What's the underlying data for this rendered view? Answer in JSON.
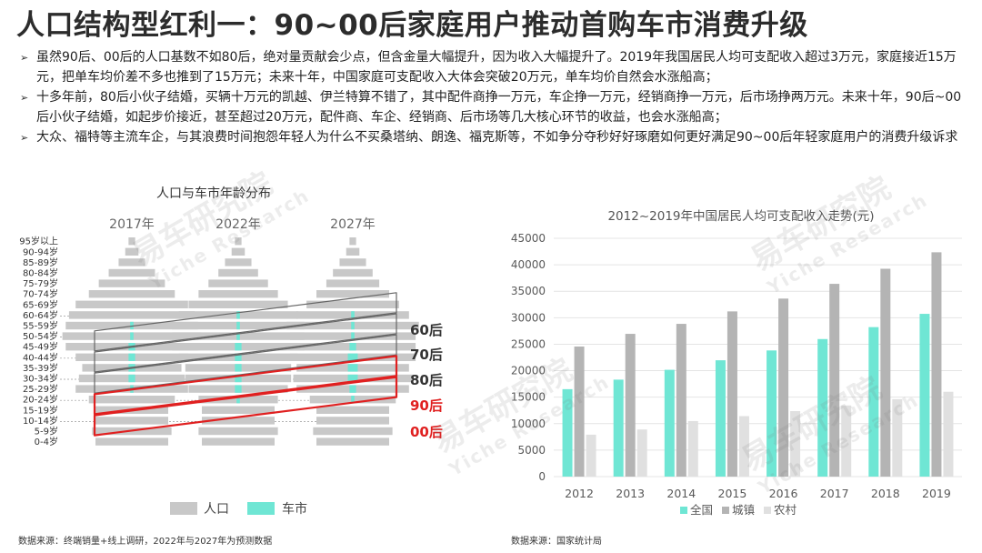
{
  "page": {
    "title": "人口结构型红利一：90~00后家庭用户推动首购车市消费升级",
    "bullets": [
      "虽然90后、00后的人口基数不如80后，绝对量贡献会少点，但含金量大幅提升，因为收入大幅提升了。2019年我国居民人均可支配收入超过3万元，家庭接近15万元，把单车均价差不多也推到了15万元；未来十年，中国家庭可支配收入大体会突破20万元，单车均价自然会水涨船高；",
      "十多年前，80后小伙子结婚，买辆十万元的凯越、伊兰特算不错了，其中配件商挣一万元，车企挣一万元，经销商挣一万元，后市场挣两万元。未来十年，90后~00后小伙子结婚，如起步价接近，甚至超过20万元，配件商、车企、经销商、后市场等几大核心环节的收益，也会水涨船高；",
      "大众、福特等主流车企，与其浪费时间抱怨年轻人为什么不买桑塔纳、朗逸、福克斯等，不如争分夺秒好好琢磨如何更好满足90~00后年轻家庭用户的消费升级诉求"
    ],
    "watermark": {
      "cn": "易车研究院",
      "en": "Yiche Research"
    },
    "source_left": "数据来源：终端销量+线上调研，2022年与2027年为预测数据",
    "source_right": "数据来源：国家统计局"
  },
  "chart_data": [
    {
      "type": "bar",
      "title": "人口与车市年龄分布",
      "columns": [
        "2017年",
        "2022年",
        "2027年"
      ],
      "age_groups": [
        "95岁以上",
        "90-94岁",
        "85-89岁",
        "80-84岁",
        "75-79岁",
        "70-74岁",
        "65-69岁",
        "60-64岁",
        "55-59岁",
        "50-54岁",
        "45-49岁",
        "40-44岁",
        "35-39岁",
        "30-34岁",
        "25-29岁",
        "20-24岁",
        "15-19岁",
        "10-14岁",
        "5-9岁",
        "0-4岁"
      ],
      "series": [
        {
          "name": "人口",
          "color": "#c8c8c8",
          "values": [
            [
              2,
              4,
              8,
              14,
              20,
              26,
              34,
              38,
              40,
              42,
              40,
              34,
              30,
              32,
              34,
              26,
              22,
              22,
              24,
              22
            ],
            [
              2,
              4,
              8,
              12,
              18,
              24,
              30,
              36,
              40,
              40,
              40,
              36,
              32,
              32,
              30,
              24,
              22,
              22,
              24,
              22
            ],
            [
              2,
              4,
              8,
              12,
              16,
              22,
              28,
              34,
              40,
              38,
              38,
              38,
              34,
              36,
              34,
              26,
              22,
              22,
              24,
              22
            ]
          ]
        },
        {
          "name": "车市",
          "color": "#6fe6d4",
          "values": [
            [
              0,
              0,
              0,
              0,
              0,
              0,
              0,
              0,
              1,
              1,
              2,
              2,
              2,
              2,
              1,
              0,
              0,
              0,
              0,
              0
            ],
            [
              0,
              0,
              0,
              0,
              0,
              0,
              0,
              1,
              1,
              1,
              2,
              2,
              2,
              2,
              2,
              1,
              0,
              0,
              0,
              0
            ],
            [
              0,
              0,
              0,
              0,
              0,
              0,
              0,
              1,
              1,
              1,
              2,
              3,
              3,
              3,
              2,
              1,
              0,
              0,
              0,
              0
            ]
          ]
        }
      ],
      "generation_labels": [
        {
          "label": "60后",
          "color": "#333333"
        },
        {
          "label": "70后",
          "color": "#333333"
        },
        {
          "label": "80后",
          "color": "#333333"
        },
        {
          "label": "90后",
          "color": "#e02020"
        },
        {
          "label": "00后",
          "color": "#e02020"
        }
      ]
    },
    {
      "type": "bar",
      "title": "2012~2019年中国居民人均可支配收入走势(元)",
      "categories": [
        "2012",
        "2013",
        "2014",
        "2015",
        "2016",
        "2017",
        "2018",
        "2019"
      ],
      "ylim": [
        0,
        45000
      ],
      "yticks": [
        "0",
        "5000",
        "10000",
        "15000",
        "20000",
        "25000",
        "30000",
        "35000",
        "40000",
        "45000"
      ],
      "series": [
        {
          "name": "全国",
          "color": "#6fe6d4",
          "values": [
            16510,
            18311,
            20167,
            21966,
            23821,
            25974,
            28228,
            30733
          ]
        },
        {
          "name": "城镇",
          "color": "#b4b4b4",
          "values": [
            24565,
            26955,
            28844,
            31195,
            33616,
            36396,
            39251,
            42359
          ]
        },
        {
          "name": "农村",
          "color": "#e0e0e0",
          "values": [
            7917,
            8896,
            10489,
            11422,
            12363,
            13432,
            14617,
            16021
          ]
        }
      ]
    }
  ]
}
